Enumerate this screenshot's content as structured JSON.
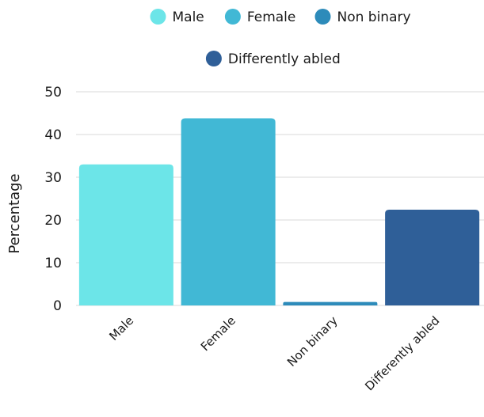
{
  "chart_data": {
    "type": "bar",
    "categories": [
      "Male",
      "Female",
      "Non binary",
      "Differently abled"
    ],
    "values": [
      33,
      43.8,
      0.8,
      22.4
    ],
    "colors": [
      "#6ce5e8",
      "#41b8d5",
      "#2d8bba",
      "#2f5f98"
    ],
    "title": "",
    "xlabel": "",
    "ylabel": "Percentage",
    "ylim": [
      0,
      50
    ],
    "yticks": [
      0,
      10,
      20,
      30,
      40,
      50
    ],
    "grid": true,
    "legend": {
      "position": "top",
      "entries": [
        "Male",
        "Female",
        "Non binary",
        "Differently abled"
      ]
    }
  }
}
